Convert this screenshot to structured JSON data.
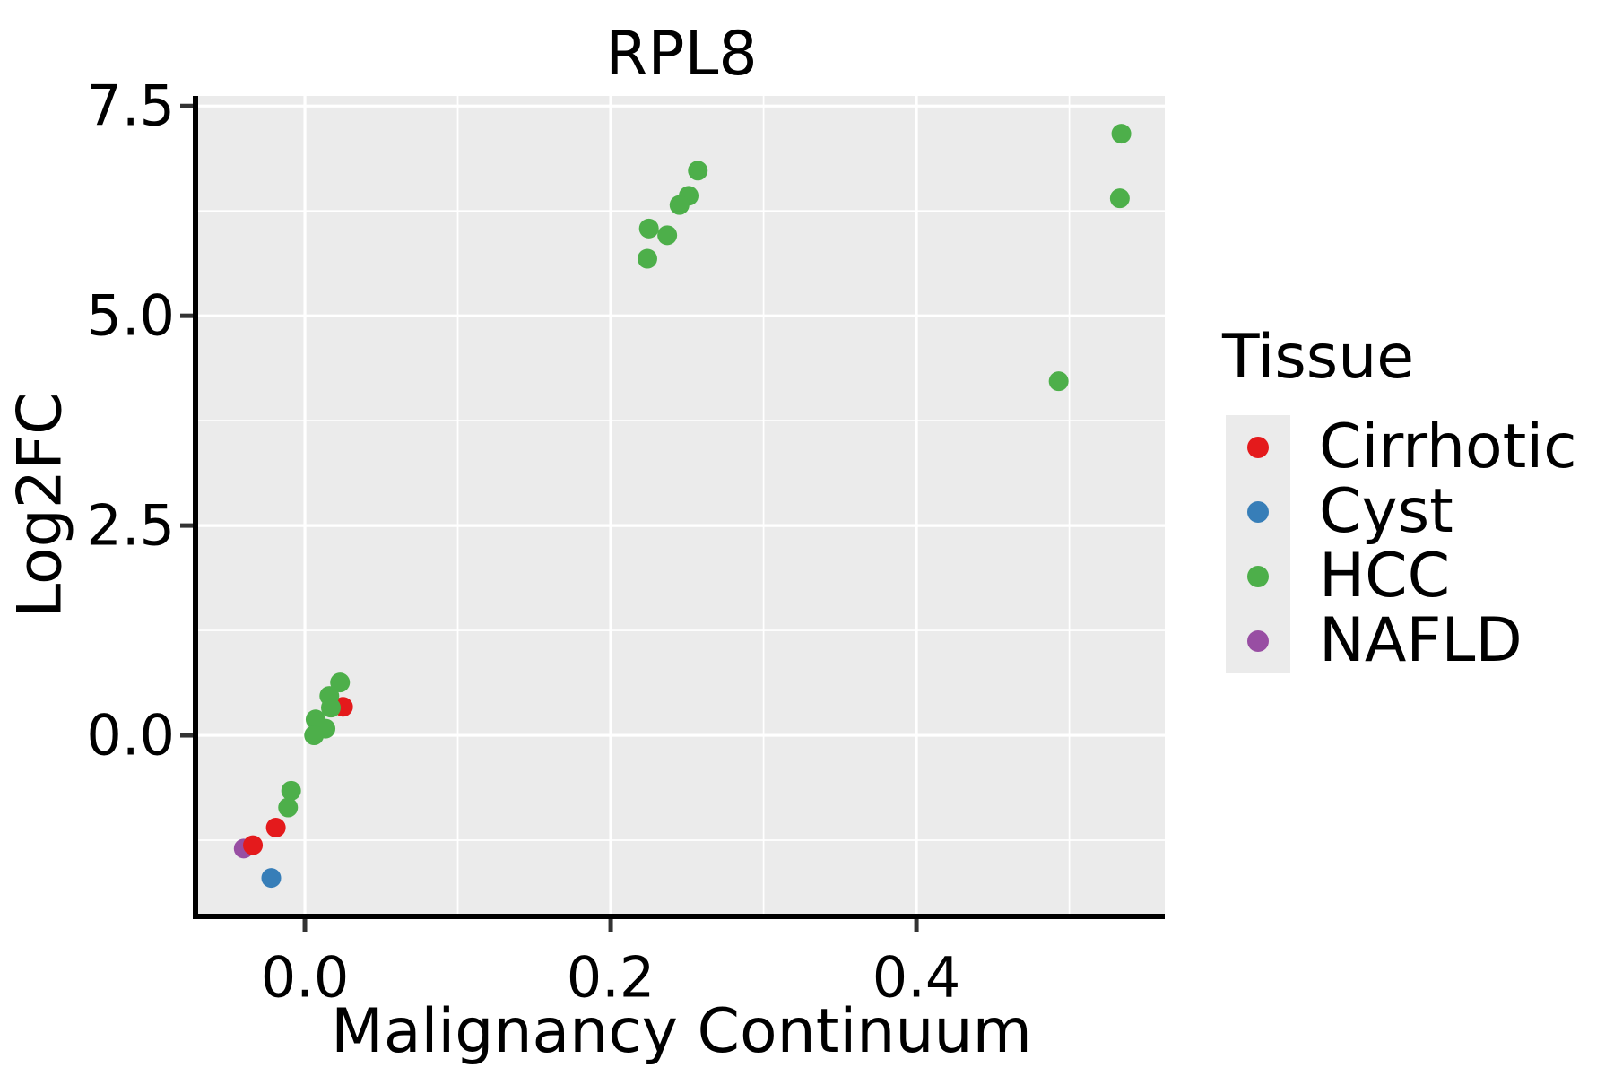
{
  "title": "RPL8",
  "axes": {
    "x": {
      "label": "Malignancy Continuum"
    },
    "y": {
      "label": "Log2FC"
    }
  },
  "legend": {
    "title": "Tissue",
    "items": [
      {
        "label": "Cirrhotic",
        "color": "#e41a1c"
      },
      {
        "label": "Cyst",
        "color": "#377eb8"
      },
      {
        "label": "HCC",
        "color": "#4daf4a"
      },
      {
        "label": "NAFLD",
        "color": "#984ea3"
      }
    ]
  },
  "style": {
    "panel_bg": "#ebebeb",
    "grid_color": "#ffffff",
    "spine_color": "#000000",
    "tick_color": "#333333",
    "text_color": "#000000",
    "point_radius": 11
  },
  "chart_data": {
    "type": "scatter",
    "title": "RPL8",
    "xlabel": "Malignancy Continuum",
    "ylabel": "Log2FC",
    "xlim": [
      -0.0698,
      0.5624
    ],
    "ylim": [
      -2.126,
      7.62
    ],
    "x_breaks": [
      0.0,
      0.2,
      0.4
    ],
    "x_break_labels": [
      "0.0",
      "0.2",
      "0.4"
    ],
    "x_minor_breaks": [
      0.1,
      0.3,
      0.5
    ],
    "y_breaks": [
      0.0,
      2.5,
      5.0,
      7.5
    ],
    "y_break_labels": [
      "0.0",
      "2.5",
      "5.0",
      "7.5"
    ],
    "y_minor_breaks": [
      -1.25,
      1.25,
      3.75,
      6.25
    ],
    "grid": true,
    "legend_title": "Tissue",
    "legend_position": "right",
    "z_order": [
      "NAFLD",
      "Cyst",
      "Cirrhotic",
      "HCC"
    ],
    "series": [
      {
        "name": "Cirrhotic",
        "color": "#e41a1c",
        "points": [
          [
            0.025,
            0.34
          ],
          [
            -0.019,
            -1.1
          ],
          [
            -0.034,
            -1.31
          ]
        ]
      },
      {
        "name": "Cyst",
        "color": "#377eb8",
        "points": [
          [
            -0.022,
            -1.7
          ]
        ]
      },
      {
        "name": "HCC",
        "color": "#4daf4a",
        "points": [
          [
            0.534,
            7.17
          ],
          [
            0.533,
            6.4
          ],
          [
            0.493,
            4.22
          ],
          [
            0.257,
            6.73
          ],
          [
            0.251,
            6.43
          ],
          [
            0.245,
            6.32
          ],
          [
            0.237,
            5.96
          ],
          [
            0.225,
            6.04
          ],
          [
            0.224,
            5.68
          ],
          [
            0.023,
            0.63
          ],
          [
            0.016,
            0.47
          ],
          [
            0.017,
            0.33
          ],
          [
            0.0135,
            0.08
          ],
          [
            0.007,
            0.19
          ],
          [
            0.006,
            0.0
          ],
          [
            -0.009,
            -0.66
          ],
          [
            -0.011,
            -0.86
          ]
        ]
      },
      {
        "name": "NAFLD",
        "color": "#984ea3",
        "points": [
          [
            -0.04,
            -1.35
          ]
        ]
      }
    ]
  }
}
